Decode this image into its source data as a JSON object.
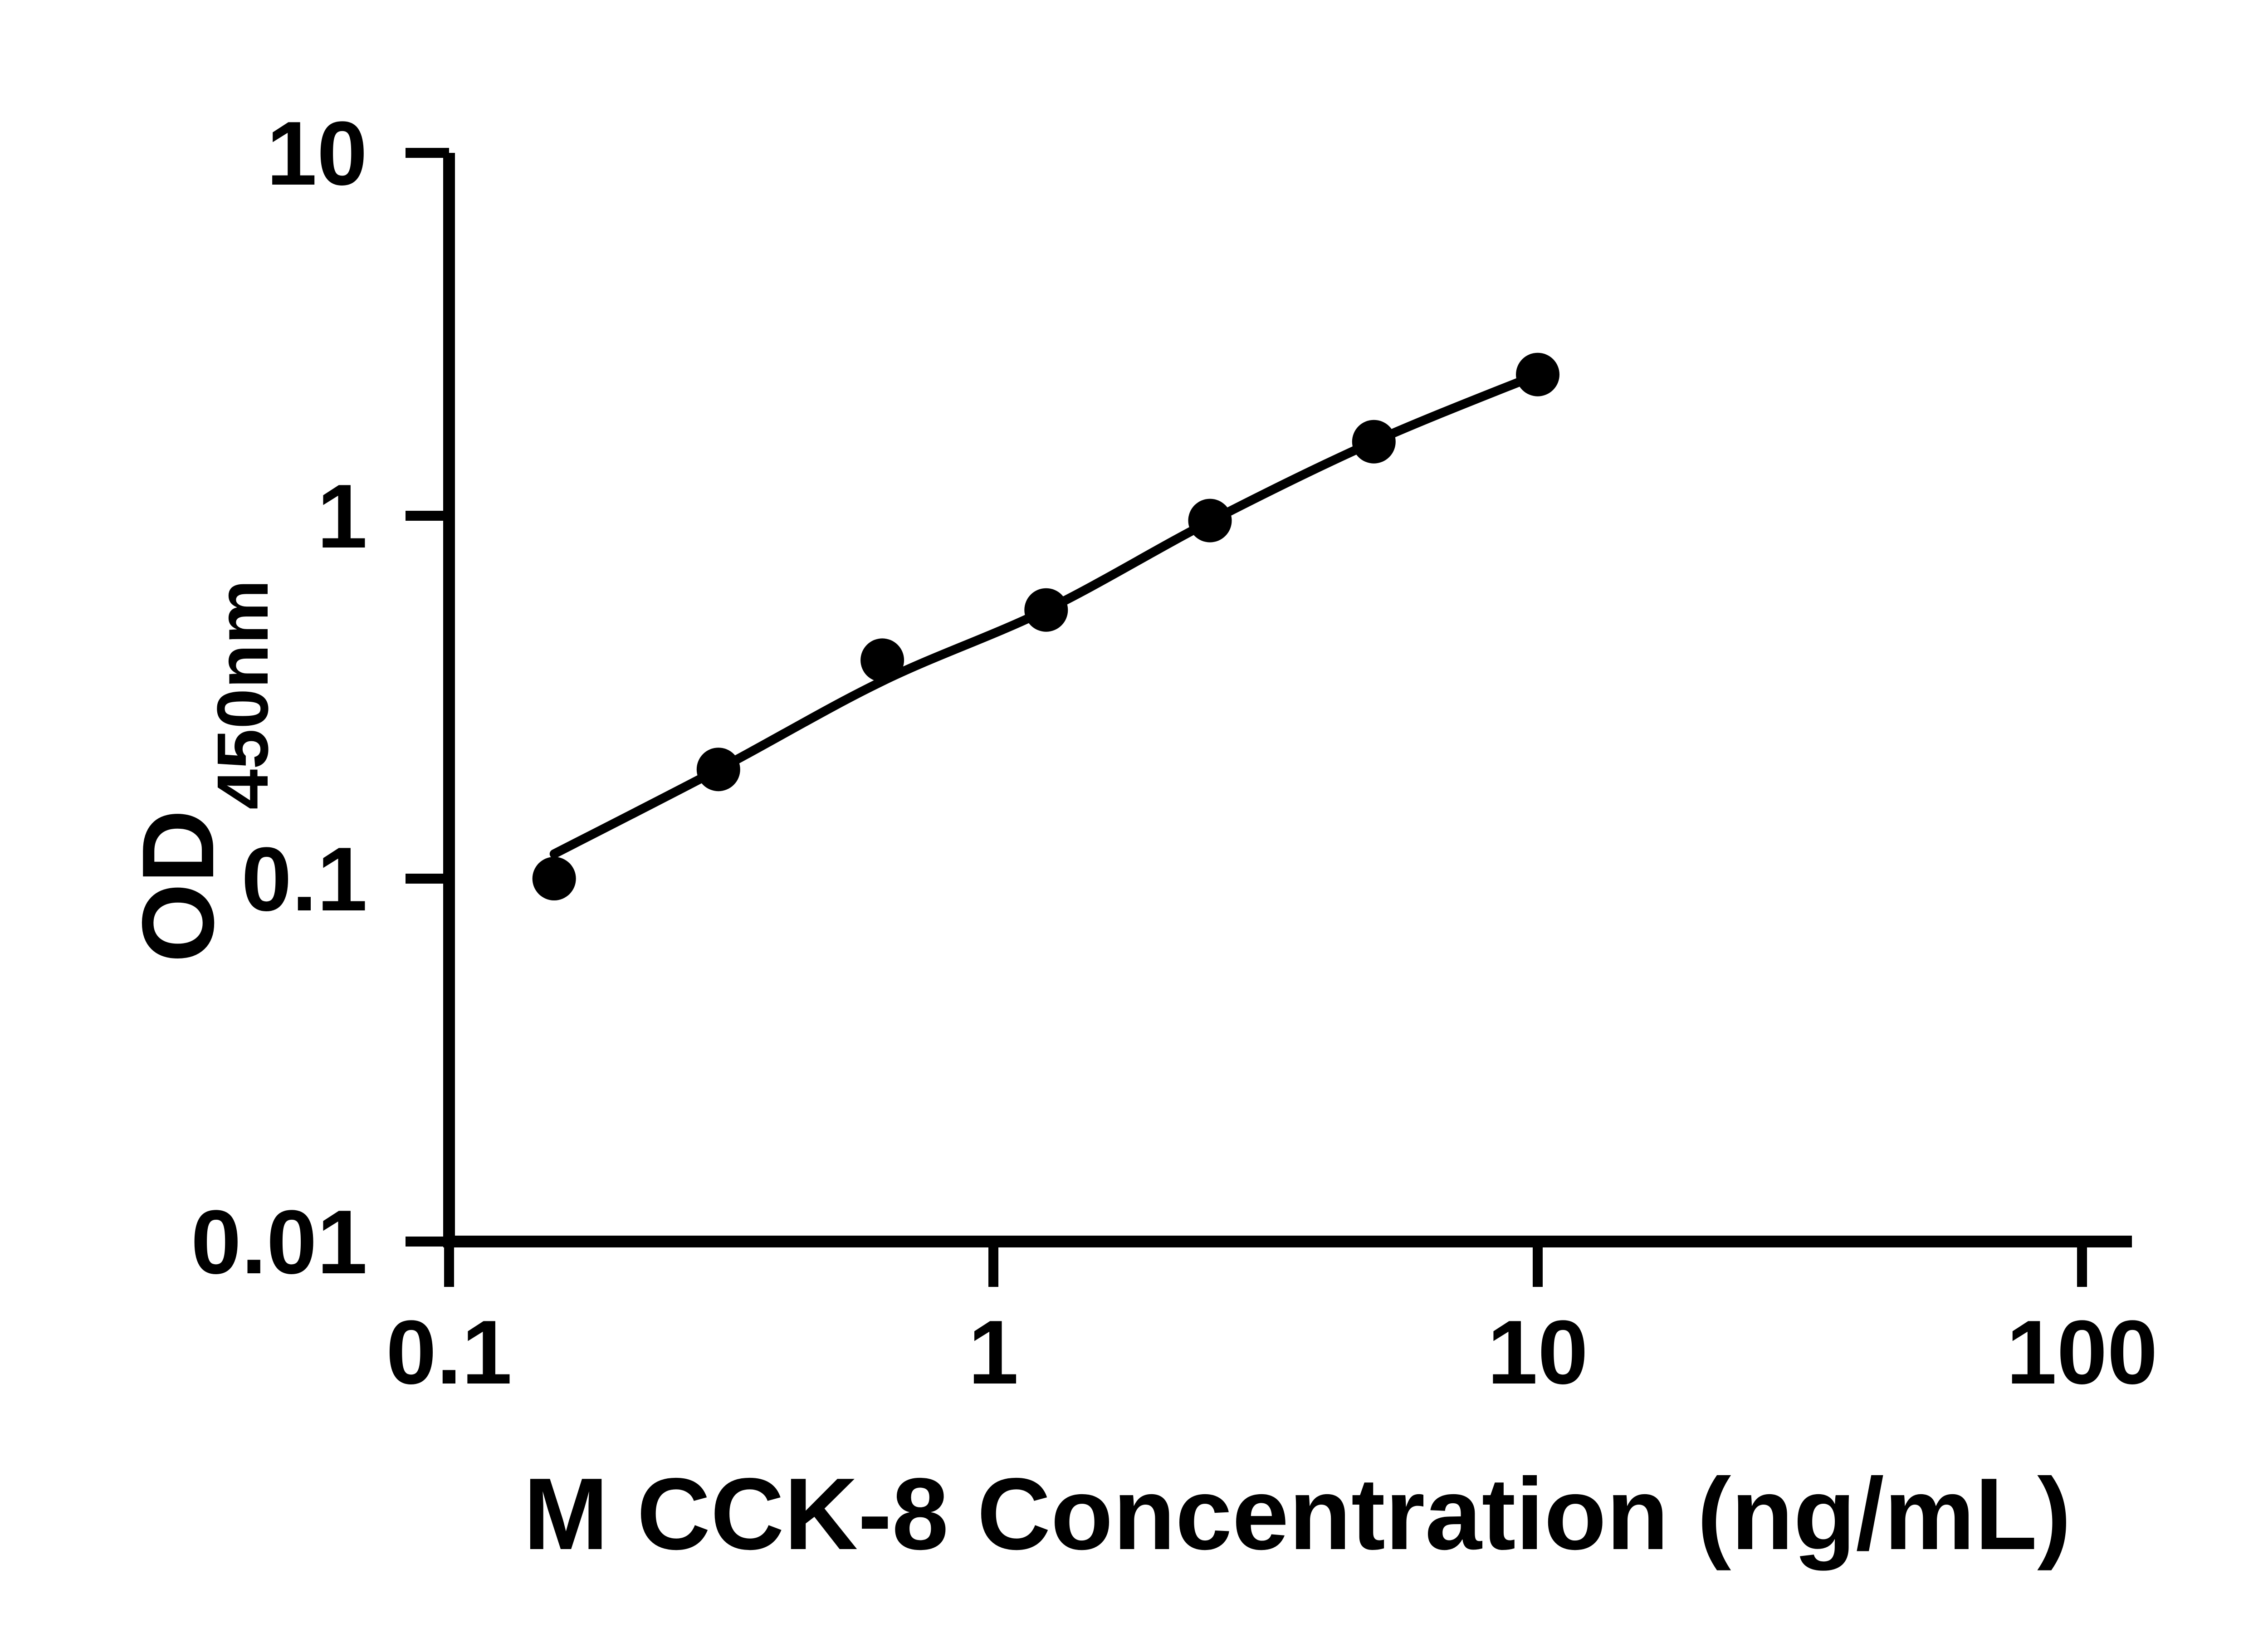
{
  "figure": {
    "background_color": "#ffffff",
    "foreground_color": "#000000"
  },
  "chart_data": {
    "type": "scatter",
    "title": "",
    "xlabel": "M CCK-8 Concentration (ng/mL)",
    "ylabel_main": "OD",
    "ylabel_sub": "450nm",
    "x_scale": "log",
    "y_scale": "log",
    "xlim": [
      0.1,
      100
    ],
    "ylim": [
      0.01,
      10
    ],
    "grid": false,
    "legend": "none",
    "x_ticks": [
      {
        "value": 0.1,
        "label": "0.1"
      },
      {
        "value": 1,
        "label": "1"
      },
      {
        "value": 10,
        "label": "10"
      },
      {
        "value": 100,
        "label": "100"
      }
    ],
    "y_ticks": [
      {
        "value": 10,
        "label": "10"
      },
      {
        "value": 1,
        "label": "1"
      },
      {
        "value": 0.1,
        "label": "0.1"
      },
      {
        "value": 0.01,
        "label": "0.01"
      }
    ],
    "series": [
      {
        "name": "standard-curve-points",
        "marker": "filled-circle",
        "color": "#000000",
        "points": [
          {
            "x": 0.156,
            "y": 0.1
          },
          {
            "x": 0.3125,
            "y": 0.2
          },
          {
            "x": 0.625,
            "y": 0.4
          },
          {
            "x": 1.25,
            "y": 0.55
          },
          {
            "x": 2.5,
            "y": 0.97
          },
          {
            "x": 5,
            "y": 1.6
          },
          {
            "x": 10,
            "y": 2.45
          }
        ]
      }
    ],
    "trend_line": {
      "name": "fit-line",
      "color": "#000000",
      "points": [
        {
          "x": 0.156,
          "y": 0.117
        },
        {
          "x": 0.3125,
          "y": 0.2
        },
        {
          "x": 0.625,
          "y": 0.35
        },
        {
          "x": 1.25,
          "y": 0.55
        },
        {
          "x": 2.5,
          "y": 0.965
        },
        {
          "x": 5,
          "y": 1.6
        },
        {
          "x": 10,
          "y": 2.45
        }
      ]
    }
  }
}
